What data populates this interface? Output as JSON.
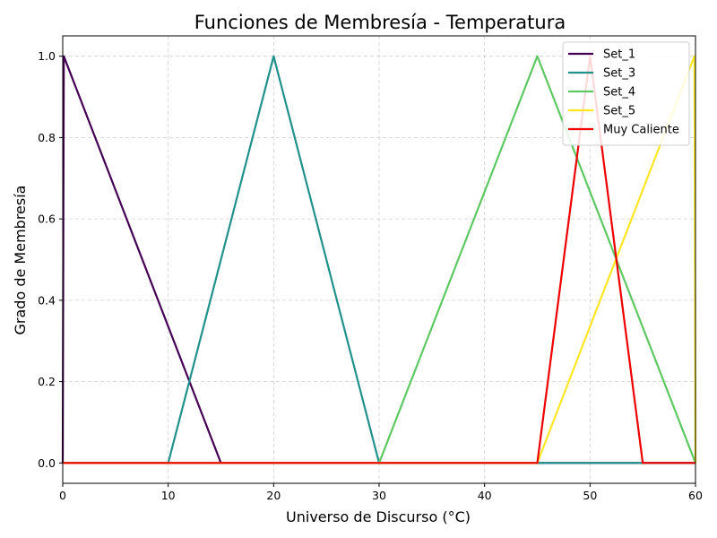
{
  "chart_data": {
    "type": "line",
    "title": "Funciones de Membresía - Temperatura",
    "xlabel": "Universo de Discurso (°C)",
    "ylabel": "Grado de Membresía",
    "xlim": [
      0,
      60
    ],
    "ylim": [
      -0.05,
      1.05
    ],
    "xticks": [
      "0",
      "10",
      "20",
      "30",
      "40",
      "50",
      "60"
    ],
    "yticks": [
      "0.0",
      "0.2",
      "0.4",
      "0.6",
      "0.8",
      "1.0"
    ],
    "grid": true,
    "legend_position": "top-right",
    "series": [
      {
        "name": "Set_1",
        "color": "#440154",
        "x": [
          0,
          0.1,
          15,
          60
        ],
        "y": [
          0,
          1,
          0,
          0
        ]
      },
      {
        "name": "Set_3",
        "color": "#21918c",
        "x": [
          0,
          10,
          20,
          30,
          60
        ],
        "y": [
          0,
          0,
          1,
          0,
          0
        ]
      },
      {
        "name": "Set_4",
        "color": "#5ec962",
        "x": [
          0,
          30,
          45,
          60
        ],
        "y": [
          0,
          0,
          1,
          0
        ]
      },
      {
        "name": "Set_5",
        "color": "#fde725",
        "x": [
          0,
          45,
          59.9,
          60
        ],
        "y": [
          0,
          0,
          1,
          0
        ]
      },
      {
        "name": "Muy Caliente",
        "color": "#ee0000",
        "x": [
          0,
          45,
          50,
          55,
          60
        ],
        "y": [
          0,
          0,
          1,
          0,
          0
        ]
      }
    ]
  }
}
